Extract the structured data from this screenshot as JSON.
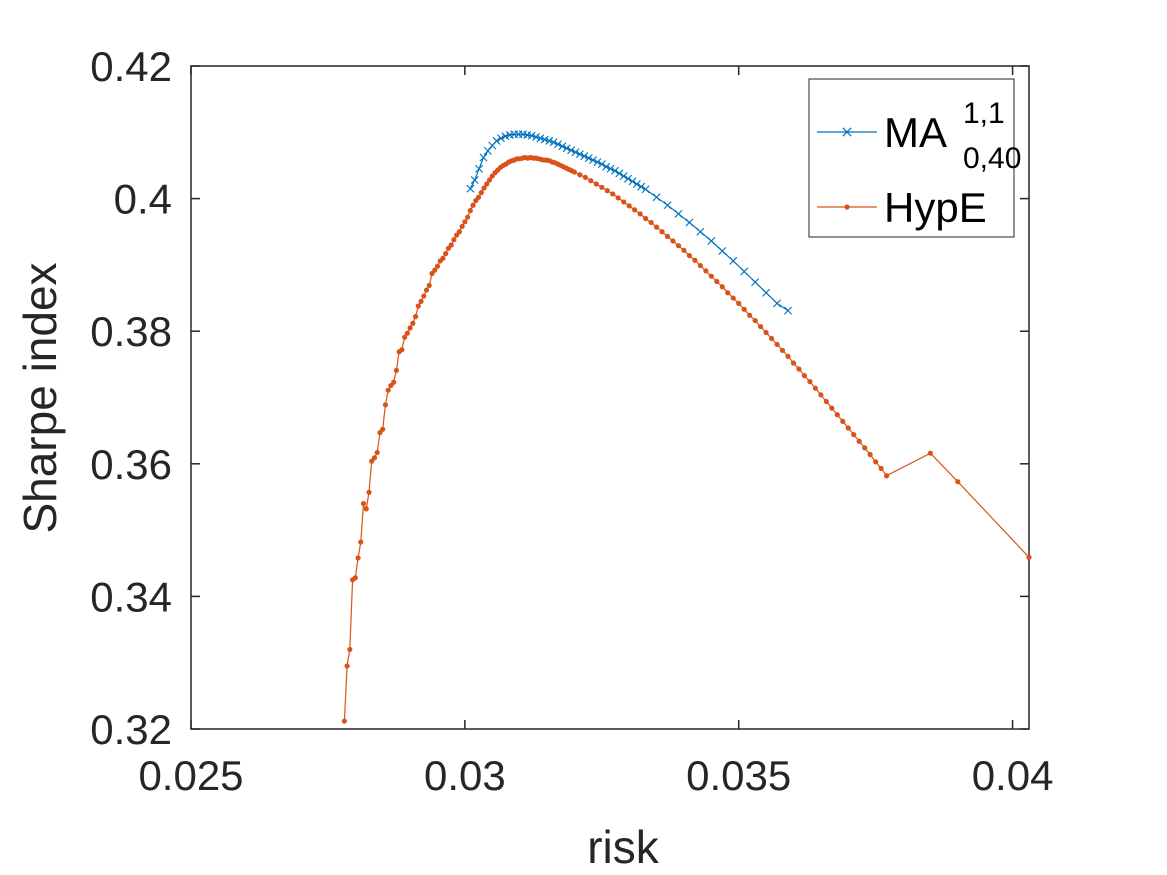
{
  "chart_data": {
    "type": "line",
    "title": "",
    "xlabel": "risk",
    "ylabel": "Sharpe index",
    "xlim": [
      0.025,
      0.0403
    ],
    "ylim": [
      0.32,
      0.42
    ],
    "xticks": [
      0.025,
      0.03,
      0.035,
      0.04
    ],
    "xtick_labels": [
      "0.025",
      "0.03",
      "0.035",
      "0.04"
    ],
    "yticks": [
      0.32,
      0.34,
      0.36,
      0.38,
      0.4,
      0.42
    ],
    "ytick_labels": [
      "0.32",
      "0.34",
      "0.36",
      "0.38",
      "0.4",
      "0.42"
    ],
    "grid": false,
    "legend_position": "top-right",
    "series": [
      {
        "name": "MA",
        "name_superscript": "1,1",
        "name_subscript": "0,40",
        "color": "#0072BD",
        "marker": "x",
        "x": [
          0.0301,
          0.03018,
          0.03026,
          0.03034,
          0.03042,
          0.0305,
          0.03058,
          0.03066,
          0.03074,
          0.03082,
          0.0309,
          0.03098,
          0.03106,
          0.03114,
          0.03122,
          0.0313,
          0.03138,
          0.03146,
          0.03154,
          0.03162,
          0.0317,
          0.03178,
          0.03186,
          0.03194,
          0.03202,
          0.0321,
          0.03218,
          0.03226,
          0.03234,
          0.03242,
          0.0325,
          0.03258,
          0.03266,
          0.03274,
          0.03282,
          0.0329,
          0.03298,
          0.03306,
          0.03314,
          0.03322,
          0.0333,
          0.0335,
          0.0337,
          0.0339,
          0.0341,
          0.0343,
          0.0345,
          0.0347,
          0.0349,
          0.0351,
          0.0353,
          0.0355,
          0.0357,
          0.0359
        ],
        "y": [
          0.4015,
          0.4028,
          0.4045,
          0.4062,
          0.4072,
          0.408,
          0.4087,
          0.4091,
          0.4094,
          0.4096,
          0.4097,
          0.4097,
          0.4097,
          0.4096,
          0.4095,
          0.4093,
          0.4091,
          0.4089,
          0.4087,
          0.4085,
          0.4082,
          0.4079,
          0.4076,
          0.4073,
          0.407,
          0.4067,
          0.4064,
          0.4061,
          0.4058,
          0.4055,
          0.4052,
          0.4048,
          0.4045,
          0.4042,
          0.4038,
          0.4034,
          0.403,
          0.4026,
          0.4022,
          0.4018,
          0.4014,
          0.4002,
          0.399,
          0.3977,
          0.3964,
          0.395,
          0.3936,
          0.3921,
          0.3906,
          0.389,
          0.3874,
          0.3858,
          0.3842,
          0.3831
        ]
      },
      {
        "name": "HypE",
        "color": "#D95319",
        "marker": ".",
        "x": [
          0.0278,
          0.02785,
          0.0279,
          0.02795,
          0.028,
          0.02805,
          0.0281,
          0.02815,
          0.0282,
          0.02825,
          0.0283,
          0.02835,
          0.0284,
          0.02845,
          0.0285,
          0.02855,
          0.0286,
          0.02865,
          0.0287,
          0.02875,
          0.0288,
          0.02885,
          0.0289,
          0.02895,
          0.029,
          0.02905,
          0.0291,
          0.02915,
          0.0292,
          0.02925,
          0.0293,
          0.02935,
          0.0294,
          0.02945,
          0.0295,
          0.02955,
          0.0296,
          0.02965,
          0.0297,
          0.02975,
          0.0298,
          0.02985,
          0.0299,
          0.02995,
          0.03,
          0.03005,
          0.0301,
          0.03015,
          0.0302,
          0.03025,
          0.0303,
          0.03035,
          0.0304,
          0.03045,
          0.0305,
          0.03055,
          0.0306,
          0.03065,
          0.0307,
          0.03075,
          0.0308,
          0.03085,
          0.0309,
          0.03095,
          0.031,
          0.03105,
          0.0311,
          0.03115,
          0.0312,
          0.03125,
          0.0313,
          0.03135,
          0.0314,
          0.03145,
          0.0315,
          0.03155,
          0.0316,
          0.03165,
          0.0317,
          0.03175,
          0.0318,
          0.03185,
          0.0319,
          0.03195,
          0.032,
          0.0321,
          0.0322,
          0.0323,
          0.0324,
          0.0325,
          0.0326,
          0.0327,
          0.0328,
          0.0329,
          0.033,
          0.0331,
          0.0332,
          0.0333,
          0.0334,
          0.0335,
          0.0336,
          0.0337,
          0.0338,
          0.0339,
          0.034,
          0.0341,
          0.0342,
          0.0343,
          0.0344,
          0.0345,
          0.0346,
          0.0347,
          0.0348,
          0.0349,
          0.035,
          0.0351,
          0.0352,
          0.0353,
          0.0354,
          0.0355,
          0.0356,
          0.0357,
          0.0358,
          0.0359,
          0.036,
          0.0361,
          0.0362,
          0.0363,
          0.0364,
          0.0365,
          0.0366,
          0.0367,
          0.0368,
          0.0369,
          0.037,
          0.0371,
          0.0372,
          0.0373,
          0.0374,
          0.0375,
          0.0376,
          0.0377,
          0.0385,
          0.039,
          0.0403
        ],
        "y": [
          0.3212,
          0.3295,
          0.332,
          0.3425,
          0.3428,
          0.3458,
          0.3482,
          0.354,
          0.3532,
          0.3557,
          0.3604,
          0.3609,
          0.3617,
          0.3647,
          0.3652,
          0.3689,
          0.3711,
          0.3718,
          0.3723,
          0.3741,
          0.3769,
          0.3772,
          0.3791,
          0.3797,
          0.3805,
          0.3812,
          0.3822,
          0.3838,
          0.3845,
          0.3853,
          0.3862,
          0.3869,
          0.3887,
          0.3892,
          0.3898,
          0.3906,
          0.391,
          0.3917,
          0.3925,
          0.393,
          0.3938,
          0.3945,
          0.395,
          0.3958,
          0.3965,
          0.3972,
          0.3982,
          0.399,
          0.3997,
          0.4002,
          0.4009,
          0.4016,
          0.4022,
          0.4028,
          0.4034,
          0.4039,
          0.4043,
          0.4047,
          0.405,
          0.4052,
          0.4055,
          0.4057,
          0.4058,
          0.406,
          0.406,
          0.4061,
          0.4062,
          0.4061,
          0.4062,
          0.4061,
          0.4061,
          0.406,
          0.4059,
          0.4058,
          0.4058,
          0.4057,
          0.4055,
          0.4054,
          0.4052,
          0.405,
          0.4048,
          0.4046,
          0.4044,
          0.4042,
          0.404,
          0.4036,
          0.4032,
          0.4027,
          0.4022,
          0.4017,
          0.4012,
          0.4007,
          0.4001,
          0.3995,
          0.3989,
          0.3983,
          0.3977,
          0.397,
          0.3964,
          0.3957,
          0.395,
          0.3943,
          0.3936,
          0.3929,
          0.3922,
          0.3914,
          0.3907,
          0.3899,
          0.3891,
          0.3883,
          0.3875,
          0.3867,
          0.3858,
          0.385,
          0.3842,
          0.3833,
          0.3824,
          0.3816,
          0.3807,
          0.3798,
          0.3789,
          0.378,
          0.3771,
          0.3762,
          0.3752,
          0.3743,
          0.3733,
          0.3724,
          0.3714,
          0.3704,
          0.3694,
          0.3684,
          0.3674,
          0.3664,
          0.3654,
          0.3644,
          0.3634,
          0.3624,
          0.3614,
          0.3603,
          0.3593,
          0.3582,
          0.3616,
          0.3573,
          0.3459
        ]
      }
    ]
  }
}
